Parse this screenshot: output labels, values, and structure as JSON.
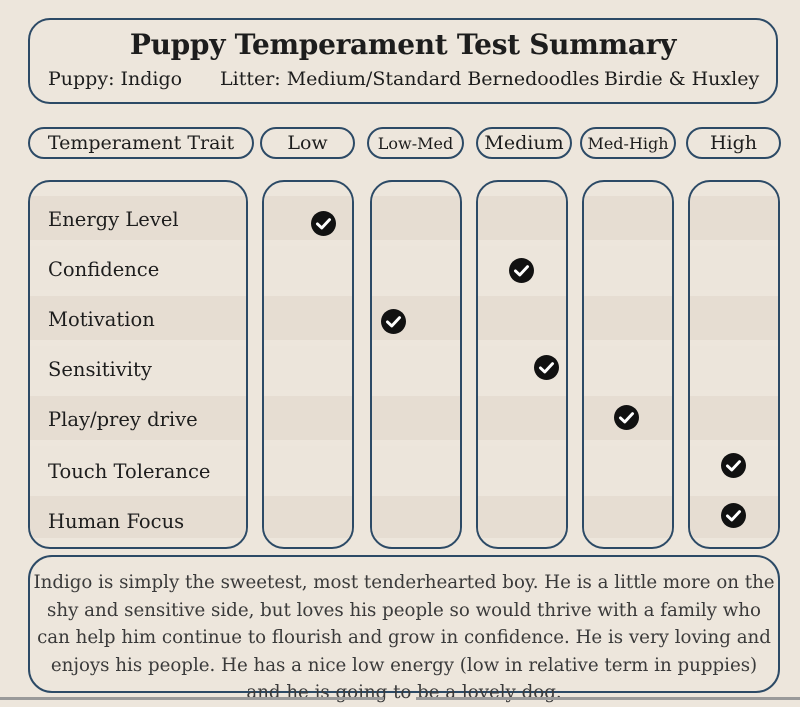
{
  "header": {
    "title": "Puppy Temperament Test Summary",
    "puppy": "Puppy: Indigo",
    "litter": "Litter: Medium/Standard Bernedoodles",
    "parents": "Birdie & Huxley"
  },
  "columns": {
    "trait": "Temperament Trait",
    "low": "Low",
    "low_med": "Low-Med",
    "medium": "Medium",
    "med_high": "Med-High",
    "high": "High"
  },
  "traits": [
    {
      "label": "Energy Level",
      "rating": "Low"
    },
    {
      "label": "Confidence",
      "rating": "Medium"
    },
    {
      "label": "Motivation",
      "rating": "Low-Med"
    },
    {
      "label": "Sensitivity",
      "rating": "Medium"
    },
    {
      "label": "Play/prey drive",
      "rating": "Med-High"
    },
    {
      "label": "Touch Tolerance",
      "rating": "High"
    },
    {
      "label": "Human Focus",
      "rating": "High"
    }
  ],
  "summary": "Indigo is simply the sweetest, most tenderhearted boy.  He is a little more on the shy and sensitive side, but loves his people so would thrive with a family who can help him continue to flourish and grow in confidence.  He is very loving and enjoys his people.  He has a nice low energy (low in relative term in puppies) and he is going to be a lovely dog.",
  "colors": {
    "background": "#ede6dc",
    "border": "#2c4a66",
    "check": "#111111"
  }
}
